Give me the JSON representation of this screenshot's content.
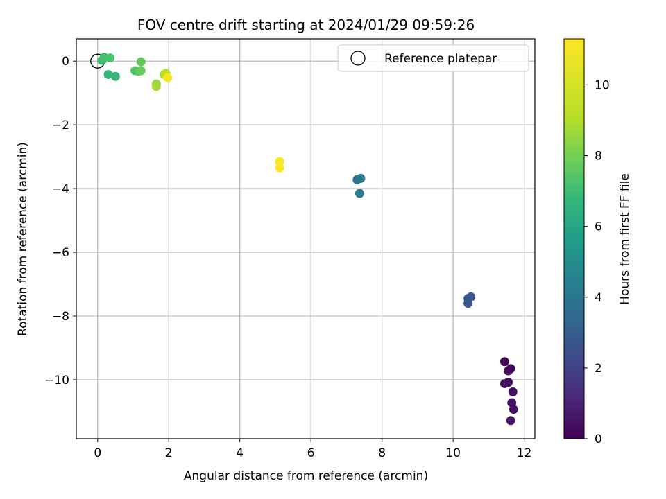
{
  "chart_data": {
    "type": "scatter",
    "title": "FOV centre drift starting at 2024/01/29 09:59:26",
    "xlabel": "Angular distance from reference (arcmin)",
    "ylabel": "Rotation from reference (arcmin)",
    "xlim": [
      -0.6,
      12.3
    ],
    "ylim": [
      -11.85,
      0.7
    ],
    "xticks": [
      0,
      2,
      4,
      6,
      8,
      10,
      12
    ],
    "yticks": [
      0,
      -2,
      -4,
      -6,
      -8,
      -10
    ],
    "grid": true,
    "legend": {
      "placement": "top-right",
      "entries": [
        "Reference platepar"
      ]
    },
    "colorbar": {
      "label": "Hours from first FF file",
      "range": [
        0,
        11.3
      ],
      "ticks": [
        0,
        2,
        4,
        6,
        8,
        10
      ],
      "colormap": "viridis"
    },
    "reference_point": {
      "x": 0,
      "y": 0
    },
    "points": [
      {
        "x": 11.45,
        "y": -9.43,
        "h": 0.1
      },
      {
        "x": 11.55,
        "y": -9.72,
        "h": 0.2
      },
      {
        "x": 11.62,
        "y": -9.65,
        "h": 0.3
      },
      {
        "x": 11.45,
        "y": -10.12,
        "h": 0.3
      },
      {
        "x": 11.55,
        "y": -10.08,
        "h": 0.4
      },
      {
        "x": 11.68,
        "y": -10.38,
        "h": 0.4
      },
      {
        "x": 11.65,
        "y": -10.72,
        "h": 0.5
      },
      {
        "x": 11.7,
        "y": -10.93,
        "h": 0.5
      },
      {
        "x": 11.62,
        "y": -11.28,
        "h": 0.6
      },
      {
        "x": 10.42,
        "y": -7.45,
        "h": 2.6
      },
      {
        "x": 10.5,
        "y": -7.4,
        "h": 2.7
      },
      {
        "x": 10.42,
        "y": -7.6,
        "h": 2.7
      },
      {
        "x": 7.3,
        "y": -3.72,
        "h": 4.0
      },
      {
        "x": 7.4,
        "y": -3.68,
        "h": 4.1
      },
      {
        "x": 7.37,
        "y": -4.15,
        "h": 4.2
      },
      {
        "x": 0.3,
        "y": -0.42,
        "h": 6.7
      },
      {
        "x": 0.5,
        "y": -0.48,
        "h": 6.8
      },
      {
        "x": 0.12,
        "y": 0.02,
        "h": 7.0
      },
      {
        "x": 0.18,
        "y": 0.12,
        "h": 7.1
      },
      {
        "x": 0.35,
        "y": 0.1,
        "h": 7.2
      },
      {
        "x": 1.05,
        "y": -0.3,
        "h": 7.3
      },
      {
        "x": 1.15,
        "y": -0.32,
        "h": 7.5
      },
      {
        "x": 1.22,
        "y": -0.02,
        "h": 7.7
      },
      {
        "x": 1.22,
        "y": -0.3,
        "h": 7.8
      },
      {
        "x": 1.65,
        "y": -0.72,
        "h": 8.6
      },
      {
        "x": 1.65,
        "y": -0.8,
        "h": 8.7
      },
      {
        "x": 1.87,
        "y": -0.42,
        "h": 9.0
      },
      {
        "x": 1.92,
        "y": -0.38,
        "h": 9.3
      },
      {
        "x": 1.97,
        "y": -0.52,
        "h": 11.1
      },
      {
        "x": 5.12,
        "y": -3.15,
        "h": 11.2
      },
      {
        "x": 5.12,
        "y": -3.35,
        "h": 11.3
      }
    ]
  }
}
